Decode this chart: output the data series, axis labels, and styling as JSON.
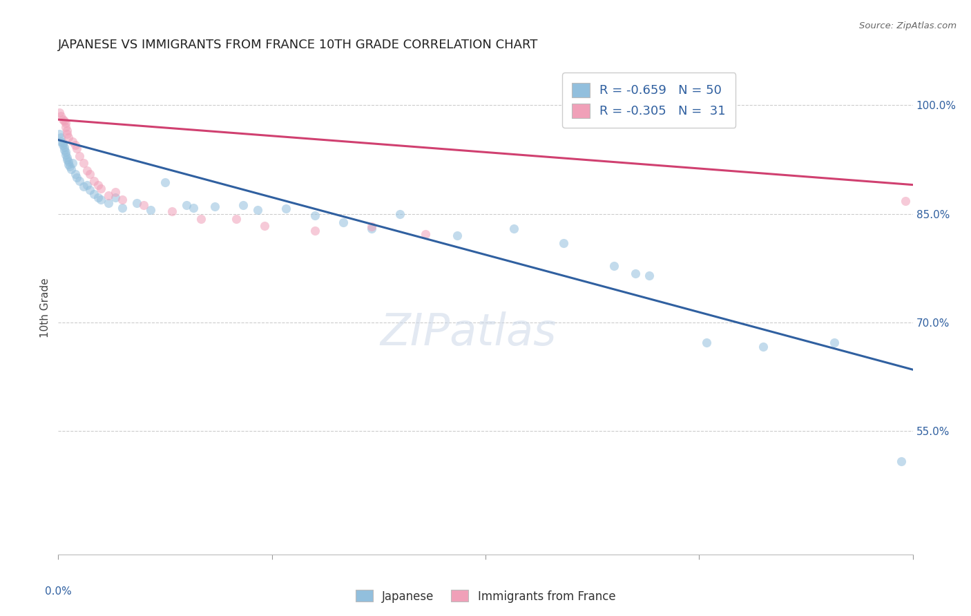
{
  "title": "JAPANESE VS IMMIGRANTS FROM FRANCE 10TH GRADE CORRELATION CHART",
  "source_text": "Source: ZipAtlas.com",
  "ylabel": "10th Grade",
  "watermark": "ZIPatlas",
  "xlim": [
    0.0,
    0.6
  ],
  "ylim": [
    0.38,
    1.06
  ],
  "ytick_values": [
    0.55,
    0.7,
    0.85,
    1.0
  ],
  "ytick_labels": [
    "55.0%",
    "70.0%",
    "85.0%",
    "100.0%"
  ],
  "blue_scatter": [
    [
      0.001,
      0.96
    ],
    [
      0.002,
      0.955
    ],
    [
      0.002,
      0.95
    ],
    [
      0.003,
      0.948
    ],
    [
      0.003,
      0.945
    ],
    [
      0.004,
      0.942
    ],
    [
      0.004,
      0.938
    ],
    [
      0.005,
      0.935
    ],
    [
      0.005,
      0.932
    ],
    [
      0.006,
      0.928
    ],
    [
      0.006,
      0.925
    ],
    [
      0.007,
      0.922
    ],
    [
      0.007,
      0.918
    ],
    [
      0.008,
      0.915
    ],
    [
      0.009,
      0.912
    ],
    [
      0.01,
      0.92
    ],
    [
      0.012,
      0.905
    ],
    [
      0.013,
      0.9
    ],
    [
      0.015,
      0.895
    ],
    [
      0.018,
      0.888
    ],
    [
      0.02,
      0.89
    ],
    [
      0.022,
      0.883
    ],
    [
      0.025,
      0.877
    ],
    [
      0.028,
      0.872
    ],
    [
      0.03,
      0.87
    ],
    [
      0.035,
      0.865
    ],
    [
      0.04,
      0.872
    ],
    [
      0.045,
      0.858
    ],
    [
      0.055,
      0.865
    ],
    [
      0.065,
      0.855
    ],
    [
      0.075,
      0.893
    ],
    [
      0.09,
      0.862
    ],
    [
      0.095,
      0.858
    ],
    [
      0.11,
      0.86
    ],
    [
      0.13,
      0.862
    ],
    [
      0.14,
      0.855
    ],
    [
      0.16,
      0.857
    ],
    [
      0.18,
      0.848
    ],
    [
      0.2,
      0.838
    ],
    [
      0.22,
      0.83
    ],
    [
      0.24,
      0.85
    ],
    [
      0.28,
      0.82
    ],
    [
      0.32,
      0.83
    ],
    [
      0.355,
      0.81
    ],
    [
      0.39,
      0.778
    ],
    [
      0.405,
      0.768
    ],
    [
      0.415,
      0.765
    ],
    [
      0.455,
      0.672
    ],
    [
      0.495,
      0.667
    ],
    [
      0.545,
      0.672
    ],
    [
      0.592,
      0.508
    ]
  ],
  "pink_scatter": [
    [
      0.001,
      0.99
    ],
    [
      0.002,
      0.985
    ],
    [
      0.003,
      0.98
    ],
    [
      0.004,
      0.978
    ],
    [
      0.005,
      0.975
    ],
    [
      0.005,
      0.97
    ],
    [
      0.006,
      0.965
    ],
    [
      0.006,
      0.96
    ],
    [
      0.007,
      0.955
    ],
    [
      0.01,
      0.95
    ],
    [
      0.012,
      0.945
    ],
    [
      0.013,
      0.94
    ],
    [
      0.015,
      0.93
    ],
    [
      0.018,
      0.92
    ],
    [
      0.02,
      0.91
    ],
    [
      0.022,
      0.905
    ],
    [
      0.025,
      0.895
    ],
    [
      0.028,
      0.89
    ],
    [
      0.03,
      0.885
    ],
    [
      0.035,
      0.875
    ],
    [
      0.04,
      0.88
    ],
    [
      0.045,
      0.87
    ],
    [
      0.06,
      0.862
    ],
    [
      0.08,
      0.853
    ],
    [
      0.1,
      0.843
    ],
    [
      0.125,
      0.843
    ],
    [
      0.145,
      0.833
    ],
    [
      0.18,
      0.827
    ],
    [
      0.22,
      0.832
    ],
    [
      0.258,
      0.822
    ],
    [
      0.595,
      0.868
    ]
  ],
  "blue_line_x": [
    0.0,
    0.6
  ],
  "blue_line_y": [
    0.952,
    0.635
  ],
  "pink_line_x": [
    0.0,
    0.6
  ],
  "pink_line_y": [
    0.98,
    0.89
  ],
  "blue_color": "#92bfdd",
  "pink_color": "#f0a0b8",
  "blue_line_color": "#3060a0",
  "pink_line_color": "#d04070",
  "background_color": "#ffffff",
  "grid_color": "#cccccc",
  "title_fontsize": 13,
  "scatter_size": 90,
  "scatter_alpha": 0.55
}
